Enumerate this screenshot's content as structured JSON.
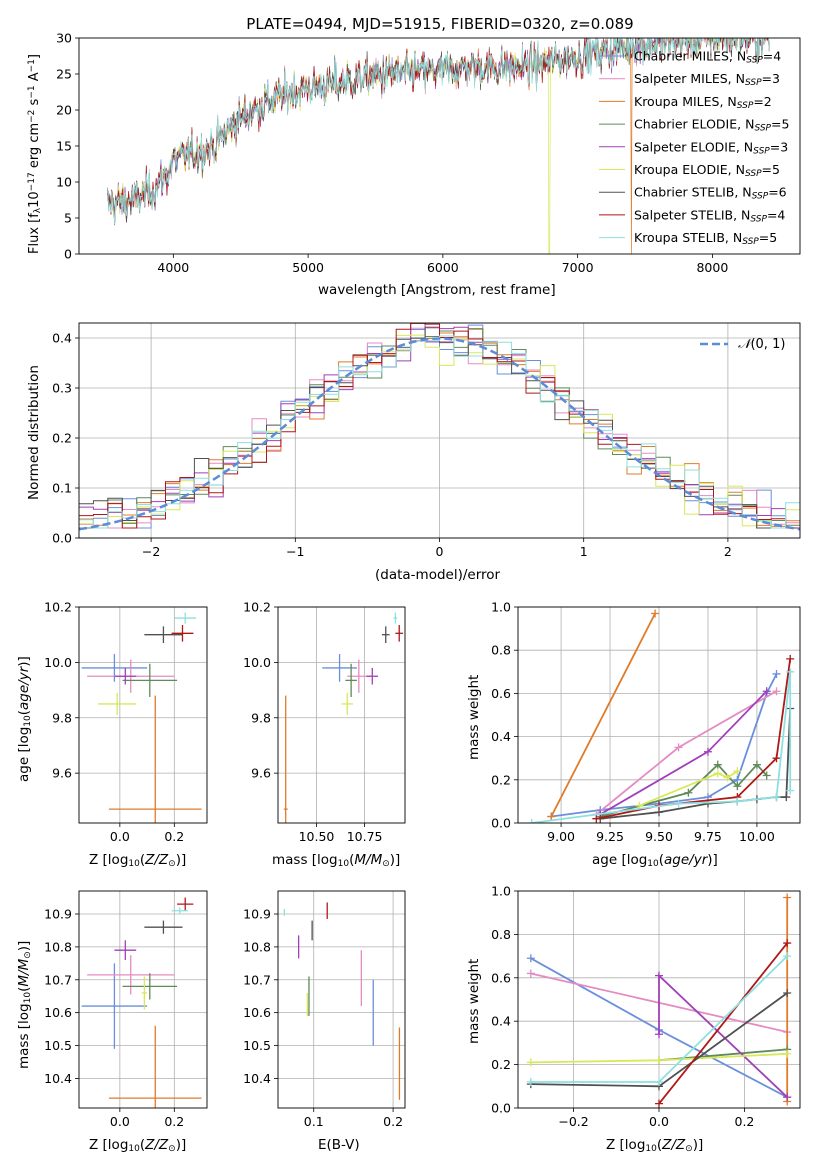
{
  "figure_title": "PLATE=0494, MJD=51915, FIBERID=0320, z=0.089",
  "colors": {
    "chabrier_miles": "#6a8fdc",
    "salpeter_miles": "#e58bc3",
    "kroupa_miles": "#e07b2a",
    "chabrier_elodie": "#5f8a5a",
    "salpeter_elodie": "#a040b8",
    "kroupa_elodie": "#d8e85a",
    "chabrier_stelib": "#505050",
    "salpeter_stelib": "#b01818",
    "kroupa_stelib": "#8ee0e0",
    "normal_curve": "#5b8bd9",
    "grid": "#b0b0b0"
  },
  "chart_data": [
    {
      "id": "spectrum",
      "type": "line",
      "title": "PLATE=0494, MJD=51915, FIBERID=0320, z=0.089",
      "xlabel": "wavelength [Angstrom, rest frame]",
      "ylabel": "Flux [f_λ 10^-17 erg cm^-2 s^-1 A^-1]",
      "xlim": [
        3300,
        8650
      ],
      "ylim": [
        0,
        30
      ],
      "xticks": [
        4000,
        5000,
        6000,
        7000,
        8000
      ],
      "yticks": [
        0,
        5,
        10,
        15,
        20,
        25,
        30
      ],
      "grid": false,
      "legend_position": "top-right",
      "spectrum_x_range": [
        3510,
        8420
      ],
      "continuum": {
        "x": [
          3510,
          3700,
          3850,
          3950,
          4000,
          4300,
          4500,
          4800,
          5000,
          5300,
          5600,
          6000,
          6300,
          6600,
          7000,
          7400,
          8000,
          8420
        ],
        "y": [
          7,
          7.5,
          9,
          11,
          13,
          15,
          19,
          22,
          23,
          24,
          25,
          25.5,
          26,
          26,
          27.5,
          29,
          30,
          30
        ]
      },
      "series": [
        {
          "name": "Chabrier MILES, N_SSP=4",
          "key": "chabrier_miles"
        },
        {
          "name": "Salpeter MILES, N_SSP=3",
          "key": "salpeter_miles"
        },
        {
          "name": "Kroupa MILES, N_SSP=2",
          "key": "kroupa_miles"
        },
        {
          "name": "Chabrier ELODIE, N_SSP=5",
          "key": "chabrier_elodie"
        },
        {
          "name": "Salpeter ELODIE, N_SSP=3",
          "key": "salpeter_elodie"
        },
        {
          "name": "Kroupa ELODIE, N_SSP=5",
          "key": "kroupa_elodie"
        },
        {
          "name": "Chabrier STELIB, N_SSP=6",
          "key": "chabrier_stelib"
        },
        {
          "name": "Salpeter STELIB, N_SSP=4",
          "key": "salpeter_stelib"
        },
        {
          "name": "Kroupa STELIB, N_SSP=5",
          "key": "kroupa_stelib"
        }
      ]
    },
    {
      "id": "residuals",
      "type": "histogram",
      "xlabel": "(data-model)/error",
      "ylabel": "Normed distribution",
      "xlim": [
        -2.5,
        2.5
      ],
      "ylim": [
        0,
        0.43
      ],
      "xticks": [
        -2,
        -1,
        0,
        1,
        2
      ],
      "yticks": [
        0.0,
        0.1,
        0.2,
        0.3,
        0.4
      ],
      "grid": true,
      "legend_position": "top-right",
      "bins": 50,
      "reference_curve": {
        "name": "N(0,1)",
        "mu": 0,
        "sigma": 1,
        "style": "dashed"
      }
    },
    {
      "id": "age_vs_Z",
      "type": "scatter",
      "xlabel": "Z [log10(Z/Z⊙)]",
      "ylabel": "age  [log10(age/yr)]",
      "xlim": [
        -0.15,
        0.32
      ],
      "ylim": [
        9.42,
        10.2
      ],
      "xticks": [
        0.0,
        0.2
      ],
      "yticks": [
        9.6,
        9.8,
        10.0,
        10.2
      ],
      "grid": true,
      "points": [
        {
          "key": "chabrier_miles",
          "x": -0.02,
          "y": 9.98,
          "xerr": 0.12,
          "yerr": 0.05
        },
        {
          "key": "salpeter_miles",
          "x": 0.04,
          "y": 9.95,
          "xerr": 0.16,
          "yerr": 0.06
        },
        {
          "key": "kroupa_miles",
          "x": 0.13,
          "y": 9.47,
          "xerr": 0.17,
          "yerr": 0.41
        },
        {
          "key": "chabrier_elodie",
          "x": 0.11,
          "y": 9.935,
          "xerr": 0.1,
          "yerr": 0.06
        },
        {
          "key": "salpeter_elodie",
          "x": 0.02,
          "y": 9.95,
          "xerr": 0.04,
          "yerr": 0.03
        },
        {
          "key": "kroupa_elodie",
          "x": -0.01,
          "y": 9.85,
          "xerr": 0.07,
          "yerr": 0.04
        },
        {
          "key": "chabrier_stelib",
          "x": 0.16,
          "y": 10.1,
          "xerr": 0.07,
          "yerr": 0.03
        },
        {
          "key": "salpeter_stelib",
          "x": 0.23,
          "y": 10.105,
          "xerr": 0.04,
          "yerr": 0.03
        },
        {
          "key": "kroupa_stelib",
          "x": 0.24,
          "y": 10.16,
          "xerr": 0.04,
          "yerr": 0.02
        }
      ]
    },
    {
      "id": "age_vs_mass",
      "type": "scatter",
      "xlabel": "mass [log10(M/M⊙)]",
      "ylabel": "",
      "xlim": [
        10.3,
        10.96
      ],
      "ylim": [
        9.42,
        10.2
      ],
      "xticks": [
        10.5,
        10.75
      ],
      "yticks": [
        9.6,
        9.8,
        10.0,
        10.2
      ],
      "grid": true,
      "points": [
        {
          "key": "chabrier_miles",
          "x": 10.62,
          "y": 9.98,
          "xerr": 0.09,
          "yerr": 0.05
        },
        {
          "key": "salpeter_miles",
          "x": 10.72,
          "y": 9.95,
          "xerr": 0.06,
          "yerr": 0.06
        },
        {
          "key": "kroupa_miles",
          "x": 10.34,
          "y": 9.47,
          "xerr": 0.01,
          "yerr": 0.41
        },
        {
          "key": "chabrier_elodie",
          "x": 10.68,
          "y": 9.935,
          "xerr": 0.03,
          "yerr": 0.06
        },
        {
          "key": "salpeter_elodie",
          "x": 10.79,
          "y": 9.95,
          "xerr": 0.03,
          "yerr": 0.03
        },
        {
          "key": "kroupa_elodie",
          "x": 10.66,
          "y": 9.85,
          "xerr": 0.03,
          "yerr": 0.04
        },
        {
          "key": "chabrier_stelib",
          "x": 10.86,
          "y": 10.1,
          "xerr": 0.02,
          "yerr": 0.03
        },
        {
          "key": "salpeter_stelib",
          "x": 10.93,
          "y": 10.105,
          "xerr": 0.02,
          "yerr": 0.03
        },
        {
          "key": "kroupa_stelib",
          "x": 10.91,
          "y": 10.16,
          "xerr": 0.01,
          "yerr": 0.02
        }
      ]
    },
    {
      "id": "mass_weight_vs_age",
      "type": "line",
      "xlabel": "age  [log10(age/yr)]",
      "ylabel": "mass weight",
      "xlim": [
        8.78,
        10.22
      ],
      "ylim": [
        0,
        1.0
      ],
      "xticks": [
        9.0,
        9.25,
        9.5,
        9.75,
        10.0
      ],
      "yticks": [
        0.0,
        0.2,
        0.4,
        0.6,
        0.8,
        1.0
      ],
      "grid": true,
      "series": [
        {
          "key": "chabrier_miles",
          "x": [
            8.95,
            9.2,
            9.5,
            9.75,
            9.9,
            10.05,
            10.1
          ],
          "y": [
            0.03,
            0.06,
            0.09,
            0.12,
            0.2,
            0.6,
            0.69
          ]
        },
        {
          "key": "salpeter_miles",
          "x": [
            9.18,
            9.6,
            10.1
          ],
          "y": [
            0.04,
            0.35,
            0.61
          ]
        },
        {
          "key": "kroupa_miles",
          "x": [
            8.95,
            9.48
          ],
          "y": [
            0.03,
            0.97
          ]
        },
        {
          "key": "chabrier_elodie",
          "x": [
            9.2,
            9.65,
            9.8,
            9.9,
            10.0,
            10.05
          ],
          "y": [
            0.03,
            0.14,
            0.27,
            0.17,
            0.27,
            0.22
          ]
        },
        {
          "key": "salpeter_elodie",
          "x": [
            9.2,
            9.75,
            10.05
          ],
          "y": [
            0.04,
            0.33,
            0.61
          ]
        },
        {
          "key": "kroupa_elodie",
          "x": [
            9.4,
            9.8,
            9.85,
            9.9
          ],
          "y": [
            0.08,
            0.23,
            0.21,
            0.24
          ]
        },
        {
          "key": "chabrier_stelib",
          "x": [
            9.2,
            9.5,
            9.75,
            9.9,
            10.0,
            10.1,
            10.15,
            10.17
          ],
          "y": [
            0.02,
            0.05,
            0.09,
            0.1,
            0.11,
            0.12,
            0.12,
            0.53
          ]
        },
        {
          "key": "salpeter_stelib",
          "x": [
            9.18,
            9.5,
            9.9,
            10.1,
            10.17
          ],
          "y": [
            0.02,
            0.08,
            0.12,
            0.3,
            0.76
          ]
        },
        {
          "key": "kroupa_stelib",
          "x": [
            8.85,
            9.6,
            9.9,
            10.1,
            10.17,
            10.17
          ],
          "y": [
            0.0,
            0.09,
            0.1,
            0.12,
            0.7,
            0.15
          ]
        }
      ]
    },
    {
      "id": "mass_vs_Z",
      "type": "scatter",
      "xlabel": "Z [log10(Z/Z⊙)]",
      "ylabel": "mass [log10(M/M⊙)]",
      "xlim": [
        -0.15,
        0.32
      ],
      "ylim": [
        10.31,
        10.97
      ],
      "xticks": [
        0.0,
        0.2
      ],
      "yticks": [
        10.4,
        10.5,
        10.6,
        10.7,
        10.8,
        10.9
      ],
      "grid": true,
      "points": [
        {
          "key": "chabrier_miles",
          "x": -0.02,
          "y": 10.62,
          "xerr": 0.12,
          "yerr": 0.13
        },
        {
          "key": "salpeter_miles",
          "x": 0.04,
          "y": 10.715,
          "xerr": 0.16,
          "yerr": 0.06
        },
        {
          "key": "kroupa_miles",
          "x": 0.13,
          "y": 10.34,
          "xerr": 0.17,
          "yerr": 0.22
        },
        {
          "key": "chabrier_elodie",
          "x": 0.11,
          "y": 10.68,
          "xerr": 0.1,
          "yerr": 0.04
        },
        {
          "key": "salpeter_elodie",
          "x": 0.02,
          "y": 10.79,
          "xerr": 0.04,
          "yerr": 0.03
        },
        {
          "key": "kroupa_elodie",
          "x": 0.09,
          "y": 10.66,
          "xerr": 0.01,
          "yerr": 0.05
        },
        {
          "key": "chabrier_stelib",
          "x": 0.16,
          "y": 10.86,
          "xerr": 0.07,
          "yerr": 0.02
        },
        {
          "key": "salpeter_stelib",
          "x": 0.24,
          "y": 10.93,
          "xerr": 0.03,
          "yerr": 0.02
        },
        {
          "key": "kroupa_stelib",
          "x": 0.22,
          "y": 10.91,
          "xerr": 0.03,
          "yerr": 0.01
        }
      ]
    },
    {
      "id": "mass_vs_EBV",
      "type": "scatter",
      "xlabel": "E(B-V)",
      "ylabel": "",
      "xlim": [
        0.055,
        0.215
      ],
      "ylim": [
        10.31,
        10.97
      ],
      "xticks": [
        0.1,
        0.2
      ],
      "yticks": [
        10.4,
        10.5,
        10.6,
        10.7,
        10.8,
        10.9
      ],
      "grid": true,
      "points": [
        {
          "key": "chabrier_miles",
          "x": 0.175,
          "y": 10.6,
          "xerr": 0,
          "yerr": 0.1
        },
        {
          "key": "salpeter_miles",
          "x": 0.16,
          "y": 10.705,
          "xerr": 0,
          "yerr": 0.085
        },
        {
          "key": "kroupa_miles",
          "x": 0.208,
          "y": 10.445,
          "xerr": 0,
          "yerr": 0.11
        },
        {
          "key": "chabrier_elodie",
          "x": 0.094,
          "y": 10.65,
          "xerr": 0,
          "yerr": 0.06
        },
        {
          "key": "salpeter_elodie",
          "x": 0.081,
          "y": 10.8,
          "xerr": 0,
          "yerr": 0.035
        },
        {
          "key": "kroupa_elodie",
          "x": 0.092,
          "y": 10.625,
          "xerr": 0,
          "yerr": 0.035
        },
        {
          "key": "chabrier_stelib",
          "x": 0.098,
          "y": 10.85,
          "xerr": 0,
          "yerr": 0.03
        },
        {
          "key": "salpeter_stelib",
          "x": 0.117,
          "y": 10.91,
          "xerr": 0,
          "yerr": 0.025
        },
        {
          "key": "kroupa_stelib",
          "x": 0.063,
          "y": 10.905,
          "xerr": 0,
          "yerr": 0.01
        }
      ]
    },
    {
      "id": "mass_weight_vs_Z",
      "type": "line",
      "xlabel": "Z [log10(Z/Z⊙)]",
      "ylabel": "mass weight",
      "xlim": [
        -0.33,
        0.33
      ],
      "ylim": [
        0,
        1.0
      ],
      "xticks": [
        -0.2,
        0.0,
        0.2
      ],
      "yticks": [
        0.0,
        0.2,
        0.4,
        0.6,
        0.8,
        1.0
      ],
      "grid": true,
      "series": [
        {
          "key": "chabrier_miles",
          "x": [
            -0.3,
            0.0,
            0.3
          ],
          "y": [
            0.69,
            0.36,
            0.05
          ]
        },
        {
          "key": "salpeter_miles",
          "x": [
            -0.3,
            0.3
          ],
          "y": [
            0.62,
            0.35
          ]
        },
        {
          "key": "kroupa_miles",
          "x": [
            0.3,
            0.3
          ],
          "y": [
            0.03,
            0.97
          ]
        },
        {
          "key": "chabrier_elodie",
          "x": [
            0.0,
            0.3
          ],
          "y": [
            0.22,
            0.27
          ]
        },
        {
          "key": "salpeter_elodie",
          "x": [
            0.0,
            0.0,
            0.3
          ],
          "y": [
            0.34,
            0.61,
            0.05
          ]
        },
        {
          "key": "kroupa_elodie",
          "x": [
            -0.3,
            0.0,
            0.3
          ],
          "y": [
            0.21,
            0.22,
            0.25
          ]
        },
        {
          "key": "chabrier_stelib",
          "x": [
            -0.3,
            0.0,
            0.3
          ],
          "y": [
            0.11,
            0.1,
            0.53
          ]
        },
        {
          "key": "salpeter_stelib",
          "x": [
            0.0,
            0.3
          ],
          "y": [
            0.02,
            0.76
          ]
        },
        {
          "key": "kroupa_stelib",
          "x": [
            -0.3,
            0.0,
            0.3
          ],
          "y": [
            0.12,
            0.12,
            0.7
          ]
        }
      ]
    }
  ]
}
